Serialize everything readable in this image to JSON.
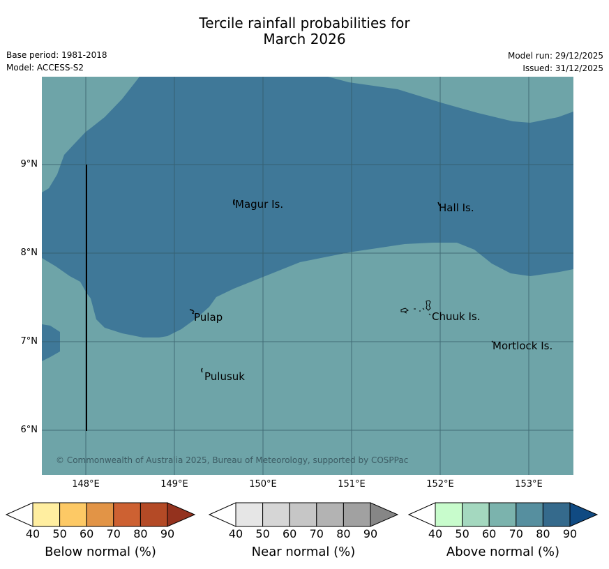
{
  "title_line1": "Tercile rainfall probabilities for",
  "title_line2": "March 2026",
  "meta": {
    "base_period": "Base period: 1981-2018",
    "model": "Model: ACCESS-S2",
    "model_run": "Model run: 29/12/2025",
    "issued": "Issued: 31/12/2025"
  },
  "colors": {
    "above_70_80": "#6ea4a8",
    "above_80_90": "#3f7898",
    "gridline": "#345a66"
  },
  "axes": {
    "lat_labels": [
      "9°N",
      "8°N",
      "7°N",
      "6°N"
    ],
    "lon_labels": [
      "148°E",
      "149°E",
      "150°E",
      "151°E",
      "152°E",
      "153°E"
    ]
  },
  "places": {
    "magur": "Magur Is.",
    "hall": "Hall Is.",
    "pulap": "Pulap",
    "chuuk": "Chuuk Is.",
    "mortlock": "Mortlock Is.",
    "pulusuk": "Pulusuk"
  },
  "copyright": "© Commonwealth of Australia 2025, Bureau of Meteorology, supported by COSPPac",
  "legends": {
    "ticks": [
      "40",
      "50",
      "60",
      "70",
      "80",
      "90"
    ],
    "below": {
      "label": "Below normal (%)",
      "colors": [
        "#ffeea0",
        "#fdc965",
        "#e29446",
        "#cd6132",
        "#b44a26",
        "#94321e"
      ]
    },
    "near": {
      "label": "Near normal (%)",
      "colors": [
        "#e6e6e6",
        "#d6d6d6",
        "#c6c6c6",
        "#b3b3b3",
        "#a1a1a1",
        "#868686"
      ]
    },
    "above": {
      "label": "Above normal (%)",
      "colors": [
        "#c8fccc",
        "#a4d8bf",
        "#7bb3ad",
        "#568f9f",
        "#356a8c",
        "#104a82"
      ]
    }
  }
}
